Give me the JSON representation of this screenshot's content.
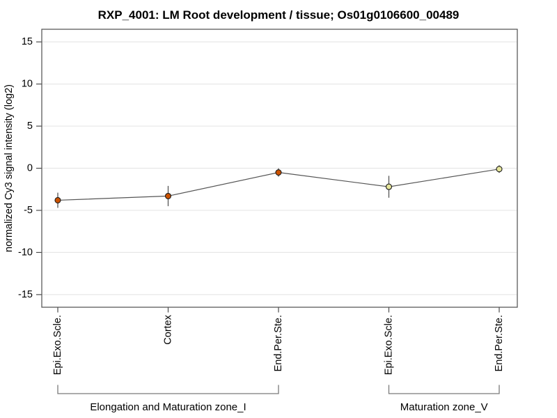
{
  "page": {
    "background": "#ffffff"
  },
  "chart_data": {
    "type": "line",
    "title": "RXP_4001: LM Root development / tissue; Os01g0106600_00489",
    "xlabel": "",
    "ylabel": "normalized Cy3 signal intensity (log2)",
    "categories": [
      "Epi.Exo.Scle.",
      "Cortex",
      "End.Per.Ste.",
      "Epi.Exo.Scle.",
      "End.Per.Ste."
    ],
    "series": [
      {
        "name": "normalized Cy3 signal intensity",
        "values": [
          -3.8,
          -3.3,
          -0.5,
          -2.2,
          -0.1
        ],
        "errors": [
          0.9,
          1.2,
          0.5,
          1.3,
          0.45
        ],
        "point_fills": [
          "#cc5200",
          "#cc5200",
          "#cc5200",
          "#e6e69c",
          "#e6e69c"
        ]
      }
    ],
    "groups": [
      {
        "label": "Elongation and Maturation zone_I",
        "start": 0,
        "end": 2
      },
      {
        "label": "Maturation zone_V",
        "start": 3,
        "end": 4
      }
    ],
    "yticks": [
      -15,
      -10,
      -5,
      0,
      5,
      10,
      15
    ],
    "ylim": [
      -16.5,
      16.5
    ],
    "grid": true,
    "legend": "none",
    "colors": {
      "line": "#555555",
      "error_bar": "#555555",
      "point_stroke": "#1a1a1a",
      "grid_line": "#e7e7e7",
      "frame": "#4d4d4d",
      "bracket": "#7a7a7a",
      "text": "#000000"
    }
  }
}
